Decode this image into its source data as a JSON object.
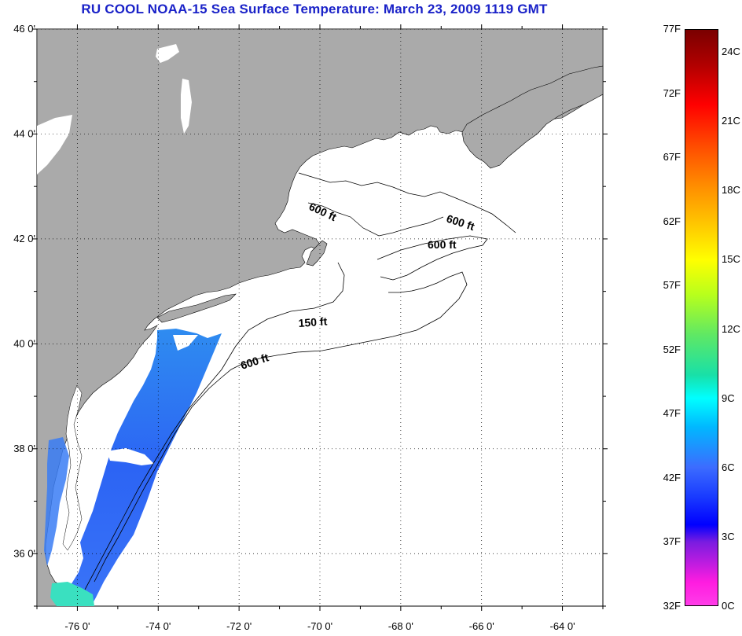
{
  "title": "RU COOL  NOAA-15  Sea Surface Temperature:  March 23, 2009 1119 GMT",
  "map": {
    "lon_range": [
      -77,
      -63
    ],
    "lat_range": [
      35,
      46
    ],
    "lat_ticks": [
      {
        "value": 46,
        "label": "46 0'"
      },
      {
        "value": 44,
        "label": "44 0'"
      },
      {
        "value": 42,
        "label": "42 0'"
      },
      {
        "value": 40,
        "label": "40 0'"
      },
      {
        "value": 38,
        "label": "38 0'"
      },
      {
        "value": 36,
        "label": "36 0'"
      }
    ],
    "lon_ticks": [
      {
        "value": -76,
        "label": "-76 0'"
      },
      {
        "value": -74,
        "label": "-74 0'"
      },
      {
        "value": -72,
        "label": "-72 0'"
      },
      {
        "value": -70,
        "label": "-70 0'"
      },
      {
        "value": -68,
        "label": "-68 0'"
      },
      {
        "value": -66,
        "label": "-66 0'"
      },
      {
        "value": -64,
        "label": "-64 0'"
      }
    ],
    "contour_labels": [
      "600 ft",
      "600 ft",
      "600 ft",
      "150 ft",
      "600 ft"
    ],
    "colors": {
      "land": "#aaaaaa",
      "water": "#ffffff",
      "sst_cold": "#2c6cf0",
      "title": "#1a22c8"
    }
  },
  "colorbar": {
    "fahrenheit": [
      "77F",
      "72F",
      "67F",
      "62F",
      "57F",
      "52F",
      "47F",
      "42F",
      "37F",
      "32F"
    ],
    "celsius": [
      "24C",
      "21C",
      "18C",
      "15C",
      "12C",
      "9C",
      "6C",
      "3C",
      "0C"
    ]
  }
}
